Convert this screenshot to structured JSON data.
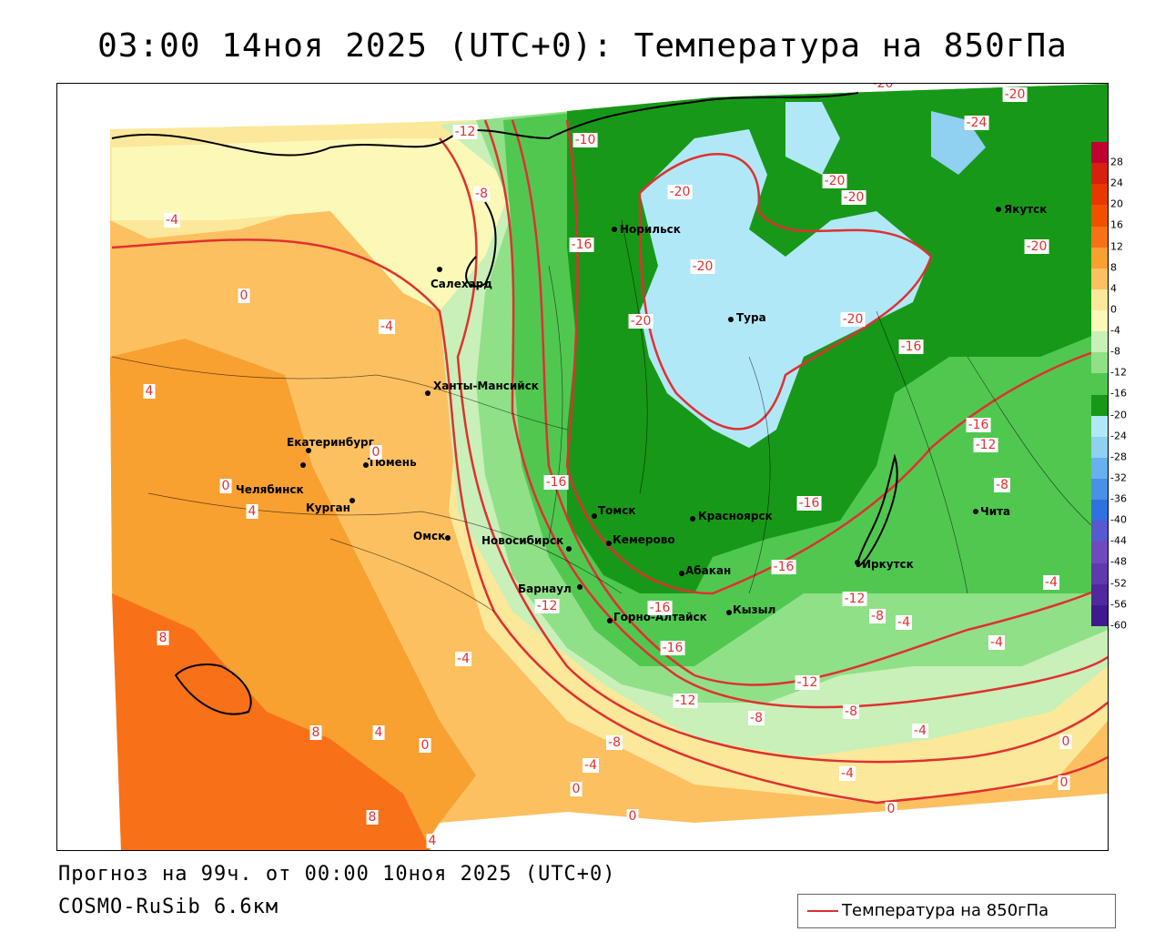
{
  "title": "03:00 14ноя 2025 (UTC+0): Температура на 850гПа",
  "forecast_text": "Прогноз на 99ч. от 00:00 10ноя 2025 (UTC+0)",
  "model_text": "COSMO-RuSib 6.6км",
  "legend": {
    "label": "Температура на 850гПа",
    "line_color": "#e03030"
  },
  "cities": [
    {
      "name": "Норильск"
    },
    {
      "name": "Якутск"
    },
    {
      "name": "Салехард"
    },
    {
      "name": "Тура"
    },
    {
      "name": "Ханты-Мансийск"
    },
    {
      "name": "Екатеринбург"
    },
    {
      "name": "Тюмень"
    },
    {
      "name": "Челябинск"
    },
    {
      "name": "Курган"
    },
    {
      "name": "Омск"
    },
    {
      "name": "Новосибирск"
    },
    {
      "name": "Томск"
    },
    {
      "name": "Кемерово"
    },
    {
      "name": "Красноярск"
    },
    {
      "name": "Абакан"
    },
    {
      "name": "Барнаул"
    },
    {
      "name": "Горно-Алтайск"
    },
    {
      "name": "Кызыл"
    },
    {
      "name": "Иркутск"
    },
    {
      "name": "Чита"
    }
  ],
  "isotherm_labels": [
    {
      "text": "-12"
    },
    {
      "text": "-10"
    },
    {
      "text": "-20"
    },
    {
      "text": "-24"
    },
    {
      "text": "-20"
    },
    {
      "text": "-8"
    },
    {
      "text": "-4"
    },
    {
      "text": "-20"
    },
    {
      "text": "-20"
    },
    {
      "text": "-20"
    },
    {
      "text": "-16"
    },
    {
      "text": "-20"
    },
    {
      "text": "-20"
    },
    {
      "text": "0"
    },
    {
      "text": "-4"
    },
    {
      "text": "-20"
    },
    {
      "text": "-20"
    },
    {
      "text": "-16"
    },
    {
      "text": "4"
    },
    {
      "text": "-16"
    },
    {
      "text": "-12"
    },
    {
      "text": "0"
    },
    {
      "text": "0"
    },
    {
      "text": "-16"
    },
    {
      "text": "-8"
    },
    {
      "text": "4"
    },
    {
      "text": "-16"
    },
    {
      "text": "-12"
    },
    {
      "text": "-12"
    },
    {
      "text": "-16"
    },
    {
      "text": "-16"
    },
    {
      "text": "-8"
    },
    {
      "text": "-4"
    },
    {
      "text": "-4"
    },
    {
      "text": "8"
    },
    {
      "text": "-4"
    },
    {
      "text": "-16"
    },
    {
      "text": "-12"
    },
    {
      "text": "-12"
    },
    {
      "text": "-8"
    },
    {
      "text": "-8"
    },
    {
      "text": "-4"
    },
    {
      "text": "8"
    },
    {
      "text": "4"
    },
    {
      "text": "0"
    },
    {
      "text": "-8"
    },
    {
      "text": "-4"
    },
    {
      "text": "0"
    },
    {
      "text": "-4"
    },
    {
      "text": "0"
    },
    {
      "text": "0"
    },
    {
      "text": "8"
    },
    {
      "text": "0"
    },
    {
      "text": "0"
    },
    {
      "text": "4"
    },
    {
      "text": "-4"
    }
  ],
  "color_scale": {
    "labels": [
      "28",
      "24",
      "20",
      "16",
      "12",
      "8",
      "4",
      "0",
      "-4",
      "-8",
      "-12",
      "-16",
      "-20",
      "-24",
      "-28",
      "-32",
      "-36",
      "-40",
      "-44",
      "-48",
      "-52",
      "-56",
      "-60"
    ],
    "colors": [
      "#c00030",
      "#d82010",
      "#e83800",
      "#f05000",
      "#f87018",
      "#f8a030",
      "#fcc060",
      "#fce89a",
      "#fcf8b8",
      "#c8f0b8",
      "#90e088",
      "#50c850",
      "#189818",
      "#b0e8f8",
      "#90d0f0",
      "#68b0f0",
      "#4890e8",
      "#3070e0",
      "#5858d0",
      "#7048c0",
      "#6038b0",
      "#5028a0",
      "#401890"
    ]
  }
}
